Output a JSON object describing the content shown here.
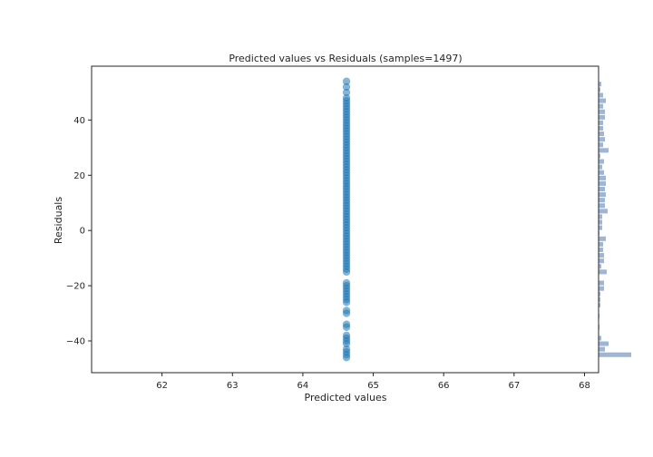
{
  "chart_data": {
    "type": "scatter",
    "title": "Predicted values vs Residuals (samples=1497)",
    "xlabel": "Predicted values",
    "ylabel": "Residuals",
    "xlim": [
      61.0,
      68.2
    ],
    "ylim": [
      -51.5,
      59.5
    ],
    "xticks": [
      62,
      63,
      64,
      65,
      66,
      67,
      68
    ],
    "yticks": [
      -40,
      -20,
      0,
      20,
      40
    ],
    "grid": false,
    "colors": {
      "points": "#1f77b4",
      "histogram": "#9fb5d6",
      "axes": "#262626"
    },
    "series": [
      {
        "x_constant": 64.62,
        "residuals": [
          -46,
          -45,
          -44,
          -43,
          -41,
          -40,
          -39,
          -38,
          -35,
          -34,
          -30,
          -29,
          -26,
          -25,
          -24,
          -23,
          -22,
          -21,
          -20,
          -19,
          -15,
          -14,
          -13,
          -12,
          -11,
          -10,
          -9,
          -8,
          -7,
          -6,
          -5,
          -4,
          -3,
          -2,
          -1,
          0,
          1,
          2,
          3,
          4,
          5,
          6,
          7,
          8,
          9,
          10,
          11,
          12,
          13,
          14,
          15,
          16,
          17,
          18,
          19,
          20,
          21,
          22,
          23,
          24,
          25,
          26,
          27,
          28,
          29,
          30,
          31,
          32,
          33,
          34,
          35,
          36,
          37,
          38,
          39,
          40,
          41,
          42,
          43,
          44,
          45,
          46,
          47,
          48,
          50,
          52,
          54
        ]
      }
    ],
    "marginal_histogram": {
      "bin_centers": [
        -45,
        -43,
        -41,
        -39,
        -37,
        -35,
        -33,
        -31,
        -29,
        -27,
        -25,
        -23,
        -21,
        -19,
        -17,
        -15,
        -13,
        -11,
        -9,
        -7,
        -5,
        -3,
        -1,
        1,
        3,
        5,
        7,
        9,
        11,
        13,
        15,
        17,
        19,
        21,
        23,
        25,
        27,
        29,
        31,
        33,
        35,
        37,
        39,
        41,
        43,
        45,
        47,
        49,
        51,
        53
      ],
      "counts": [
        72,
        14,
        22,
        6,
        0,
        2,
        0,
        2,
        0,
        4,
        4,
        4,
        12,
        12,
        0,
        18,
        6,
        12,
        12,
        10,
        10,
        16,
        2,
        8,
        8,
        8,
        20,
        14,
        14,
        16,
        14,
        16,
        16,
        12,
        8,
        12,
        4,
        22,
        10,
        14,
        12,
        10,
        10,
        14,
        14,
        10,
        16,
        10,
        4,
        6
      ]
    }
  }
}
